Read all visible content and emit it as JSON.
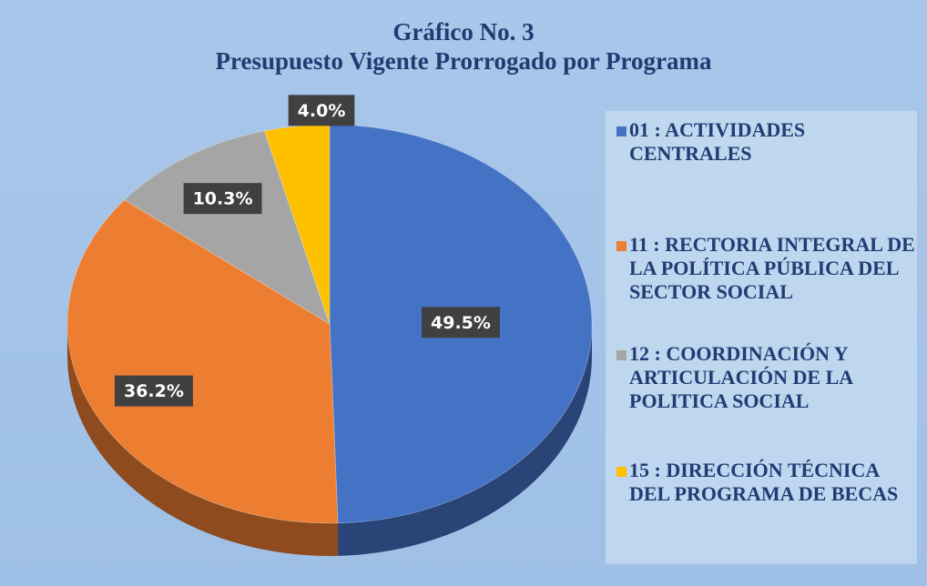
{
  "chart_data": {
    "type": "pie",
    "title": "Gráfico No. 3",
    "subtitle": "Presupuesto Vigente Prorrogado por Programa",
    "categories": [
      "01 : ACTIVIDADES CENTRALES",
      "11 : RECTORIA INTEGRAL DE LA POLÍTICA PÚBLICA DEL SECTOR SOCIAL",
      "12 : COORDINACIÓN Y ARTICULACIÓN DE LA POLITICA SOCIAL",
      "15 : DIRECCIÓN TÉCNICA DEL PROGRAMA DE BECAS"
    ],
    "values": [
      49.5,
      36.2,
      10.3,
      4.0
    ],
    "value_labels": [
      "49.5%",
      "36.2%",
      "10.3%",
      "4.0%"
    ],
    "colors": [
      "#4472c4",
      "#ed7d31",
      "#a5a5a5",
      "#ffc000"
    ],
    "legend": "right"
  }
}
